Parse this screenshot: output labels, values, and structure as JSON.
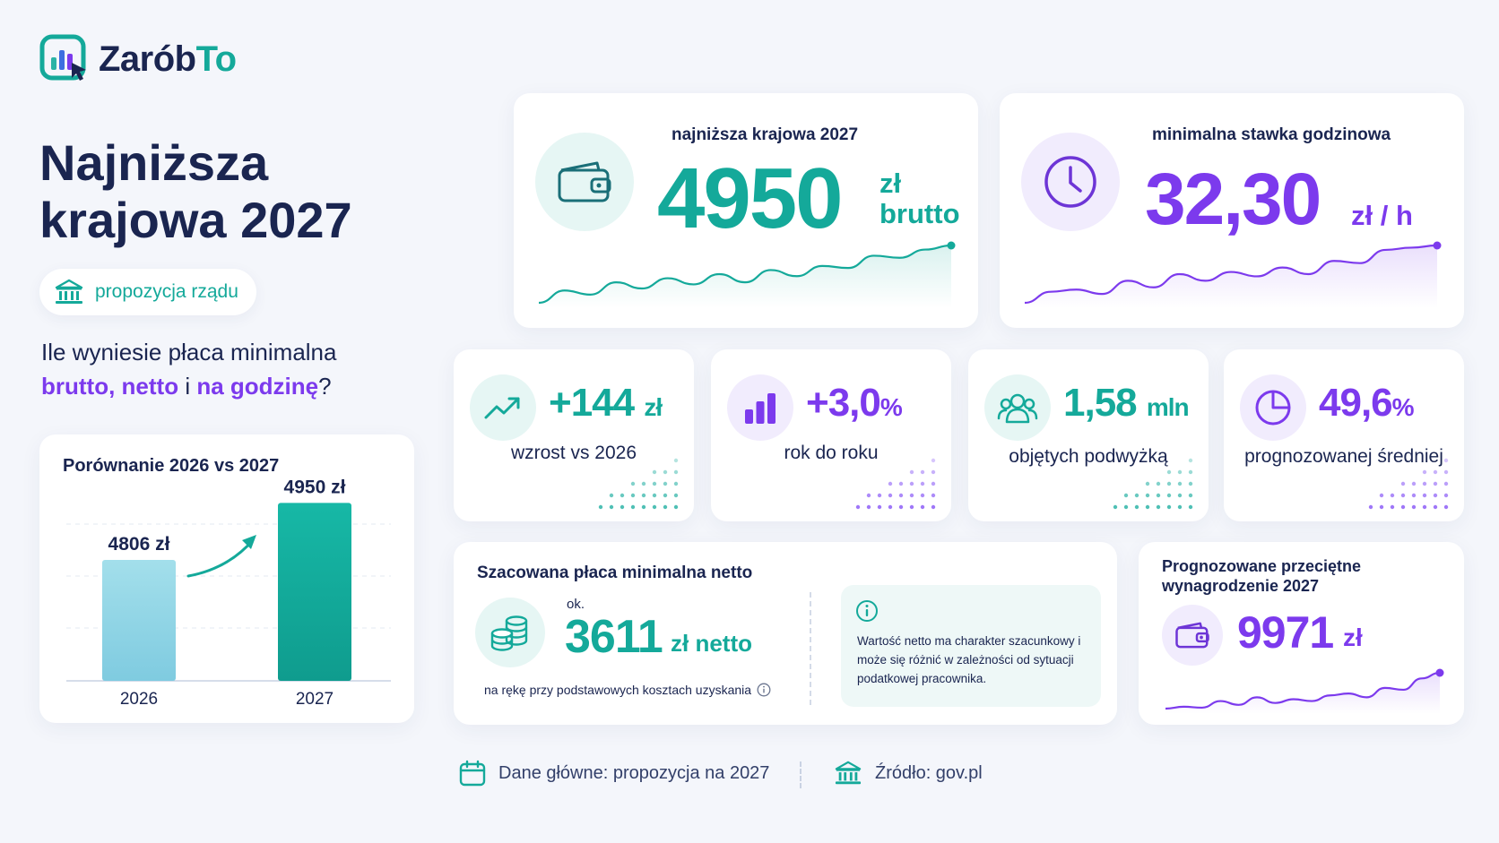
{
  "brand": {
    "name_part1": "Zarób",
    "name_part2": "To"
  },
  "title": "Najniższa krajowa 2027",
  "badge": {
    "label": "propozycja rządu",
    "icon": "bank-icon"
  },
  "lead": {
    "line1": "Ile wyniesie płaca minimalna",
    "brutto": "brutto,",
    "netto": "netto",
    "conj": "i",
    "godzine": "na godzinę",
    "qmark": "?"
  },
  "comparison": {
    "title": "Porównanie 2026 vs 2027",
    "chart_data": {
      "type": "bar",
      "categories": [
        "2026",
        "2027"
      ],
      "values": [
        4806,
        4950
      ],
      "value_labels": [
        "4806 zł",
        "4950 zł"
      ],
      "title": "Porównanie 2026 vs 2027",
      "grid": true,
      "colors": [
        "#8fd6e6",
        "#14b0a0"
      ]
    }
  },
  "minimum_wage": {
    "caption": "najniższa krajowa 2027",
    "value": "4950",
    "unit_line1": "zł",
    "unit_line2": "brutto",
    "icon": "wallet-icon",
    "color": "#14a99a",
    "trend": [
      10,
      22,
      18,
      30,
      24,
      34,
      28,
      38,
      30,
      42,
      36,
      46,
      44,
      56,
      54,
      62,
      66
    ]
  },
  "hourly_rate": {
    "caption": "minimalna stawka godzinowa",
    "value": "32,30",
    "unit": "zł / h",
    "icon": "clock-icon",
    "color": "#7c3aed",
    "trend": [
      8,
      18,
      20,
      16,
      28,
      22,
      34,
      28,
      36,
      32,
      40,
      34,
      46,
      44,
      56,
      58,
      60
    ]
  },
  "stats": [
    {
      "value": "+144",
      "unit": "zł",
      "label": "wzrost vs 2026",
      "icon": "trend-up-icon",
      "color": "#14a99a"
    },
    {
      "value": "+3,0",
      "unit": "%",
      "label": "rok do roku",
      "icon": "bar-chart-icon",
      "color": "#7c3aed"
    },
    {
      "value": "1,58",
      "unit": "mln",
      "label": "objętych podwyżką",
      "icon": "people-icon",
      "color": "#14a99a"
    },
    {
      "value": "49,6",
      "unit": "%",
      "label": "prognozowanej średniej",
      "icon": "pie-chart-icon",
      "color": "#7c3aed"
    }
  ],
  "net_estimate": {
    "title": "Szacowana płaca minimalna netto",
    "prefix": "ok.",
    "value": "3611",
    "unit": "zł netto",
    "footnote": "na rękę przy podstawowych kosztach uzyskania",
    "icon": "coins-icon",
    "info_text": "Wartość netto ma charakter szacunkowy i może się różnić w zależności od sytuacji podatkowej pracownika."
  },
  "avg_wage": {
    "title": "Prognozowane przeciętne wynagrodzenie 2027",
    "value": "9971",
    "unit": "zł",
    "icon": "wallet-icon",
    "color": "#7c3aed",
    "trend": [
      6,
      8,
      7,
      14,
      10,
      18,
      12,
      16,
      14,
      20,
      22,
      18,
      28,
      26,
      38,
      44
    ]
  },
  "footer": {
    "data_label": "Dane główne: propozycja na 2027",
    "source_label": "Źródło: gov.pl"
  }
}
